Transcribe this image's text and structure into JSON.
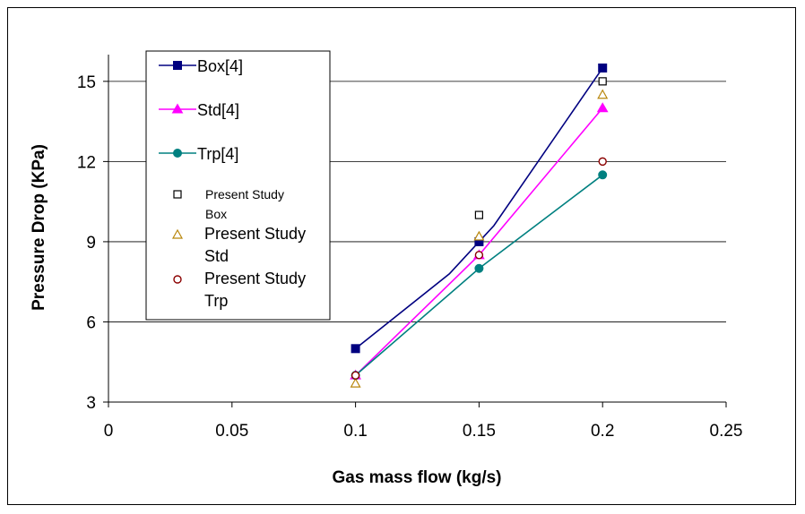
{
  "chart_data": {
    "type": "line",
    "title": "",
    "xlabel": "Gas mass flow (kg/s)",
    "ylabel": "Pressure Drop (KPa)",
    "xlim": [
      0,
      0.25
    ],
    "ylim": [
      3,
      16
    ],
    "x_ticks": [
      "0",
      "0.05",
      "0.1",
      "0.15",
      "0.2",
      "0.25"
    ],
    "y_ticks": [
      "3",
      "6",
      "9",
      "12",
      "15"
    ],
    "grid": "horizontal",
    "legend_position": "top-left inside",
    "series": [
      {
        "name": "Box[4]",
        "kind": "line",
        "marker": "filled-square",
        "color": "#000080",
        "points": [
          [
            0.1,
            5.0
          ],
          [
            0.15,
            9.0
          ],
          [
            0.2,
            15.5
          ]
        ],
        "curve": [
          [
            0.1,
            5.0
          ],
          [
            0.138,
            7.8
          ],
          [
            0.15,
            9.0
          ],
          [
            0.156,
            9.6
          ],
          [
            0.2,
            15.5
          ]
        ]
      },
      {
        "name": "Std[4]",
        "kind": "line",
        "marker": "filled-triangle",
        "color": "#FF00FF",
        "points": [
          [
            0.1,
            4.0
          ],
          [
            0.15,
            8.5
          ],
          [
            0.2,
            14.0
          ]
        ],
        "curve": [
          [
            0.1,
            4.0
          ],
          [
            0.15,
            8.5
          ],
          [
            0.2,
            14.0
          ]
        ]
      },
      {
        "name": "Trp[4]",
        "kind": "line",
        "marker": "filled-circle",
        "color": "#008080",
        "points": [
          [
            0.1,
            4.0
          ],
          [
            0.15,
            8.0
          ],
          [
            0.2,
            11.5
          ]
        ],
        "curve": [
          [
            0.1,
            4.0
          ],
          [
            0.15,
            8.0
          ],
          [
            0.2,
            11.5
          ]
        ]
      },
      {
        "name": "Present Study Box",
        "name_lines": [
          "Present Study",
          "Box"
        ],
        "kind": "scatter",
        "marker": "open-square",
        "color": "#000000",
        "points": [
          [
            0.15,
            10.0
          ],
          [
            0.2,
            15.0
          ]
        ]
      },
      {
        "name": "Present Study Std",
        "name_lines": [
          "Present Study",
          "Std"
        ],
        "kind": "scatter",
        "marker": "open-triangle",
        "color": "#B8860B",
        "points": [
          [
            0.1,
            3.7
          ],
          [
            0.15,
            9.2
          ],
          [
            0.2,
            14.5
          ]
        ]
      },
      {
        "name": "Present Study Trp",
        "name_lines": [
          "Present Study",
          "Trp"
        ],
        "kind": "scatter",
        "marker": "open-circle",
        "color": "#8B0000",
        "points": [
          [
            0.1,
            4.0
          ],
          [
            0.15,
            8.5
          ],
          [
            0.2,
            12.0
          ]
        ]
      }
    ]
  }
}
